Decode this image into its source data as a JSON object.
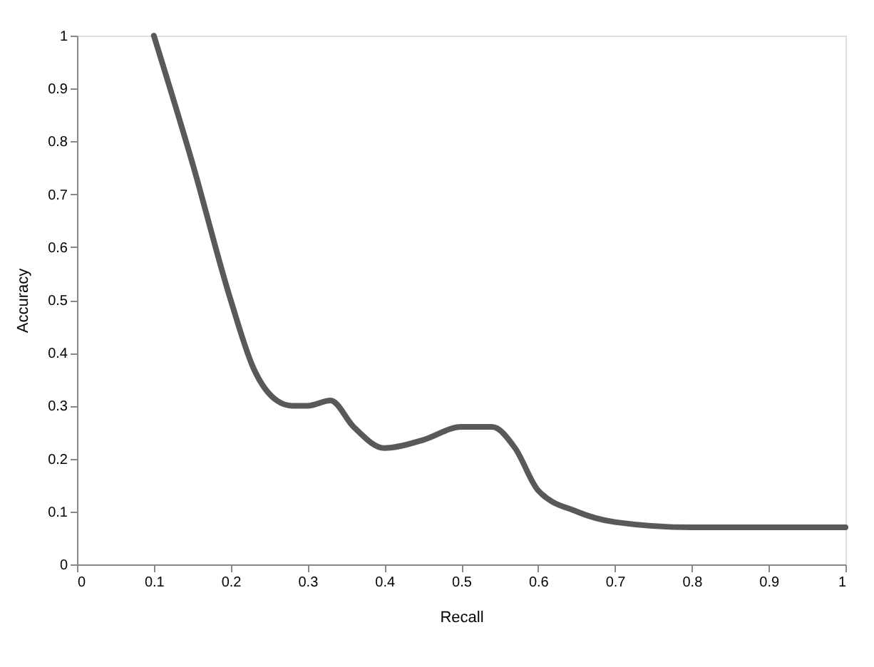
{
  "chart_data": {
    "type": "line",
    "xlabel": "Recall",
    "ylabel": "Accuracy",
    "x": [
      0.1,
      0.15,
      0.2,
      0.23,
      0.26,
      0.28,
      0.3,
      0.33,
      0.36,
      0.4,
      0.45,
      0.5,
      0.54,
      0.57,
      0.6,
      0.65,
      0.7,
      0.8,
      0.9,
      1.0
    ],
    "series": [
      {
        "color": "#595959",
        "values": [
          1.0,
          0.76,
          0.5,
          0.37,
          0.31,
          0.3,
          0.3,
          0.31,
          0.26,
          0.22,
          0.235,
          0.26,
          0.26,
          0.22,
          0.14,
          0.1,
          0.08,
          0.07,
          0.07,
          0.07
        ]
      }
    ],
    "xlim": [
      0,
      1
    ],
    "xticks": [
      0,
      0.1,
      0.2,
      0.3,
      0.4,
      0.5,
      0.6,
      0.7,
      0.8,
      0.9,
      1
    ],
    "ylim": [
      0,
      1
    ],
    "yticks": [
      0,
      0.1,
      0.2,
      0.3,
      0.4,
      0.5,
      0.6,
      0.7,
      0.8,
      0.9,
      1
    ],
    "grid": false,
    "marker": "none",
    "line_style": "solid"
  }
}
